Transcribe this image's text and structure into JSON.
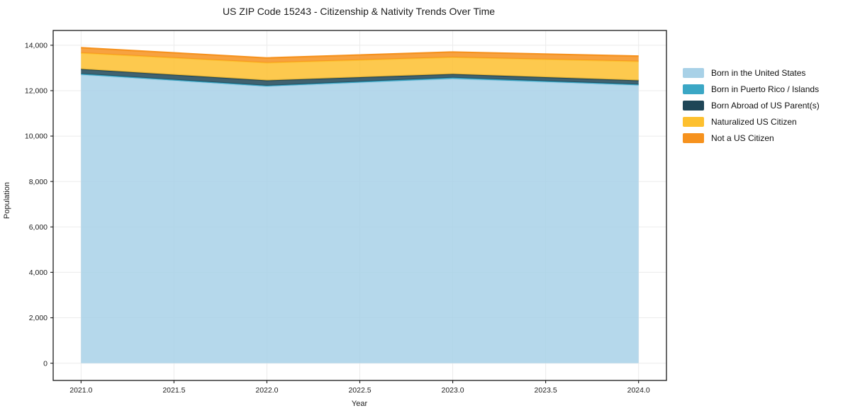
{
  "chart_data": {
    "type": "area",
    "stacked": true,
    "title": "US ZIP Code 15243 - Citizenship & Nativity Trends Over Time",
    "xlabel": "Year",
    "ylabel": "Population",
    "x": [
      2021,
      2022,
      2023,
      2024
    ],
    "series": [
      {
        "name": "Born in the United States",
        "color": "#a8d1e7",
        "values": [
          12700,
          12190,
          12520,
          12240
        ]
      },
      {
        "name": "Born in Puerto Rico / Islands",
        "color": "#3ba7c5",
        "values": [
          40,
          30,
          50,
          30
        ]
      },
      {
        "name": "Born Abroad of US Parent(s)",
        "color": "#1f4657",
        "values": [
          210,
          230,
          160,
          180
        ]
      },
      {
        "name": "Naturalized US Citizen",
        "color": "#fdc02f",
        "values": [
          710,
          780,
          740,
          840
        ]
      },
      {
        "name": "Not a US Citizen",
        "color": "#f6921e",
        "values": [
          230,
          210,
          230,
          230
        ]
      }
    ],
    "totals": [
      13890,
      13440,
      13700,
      13520
    ],
    "x_ticks": [
      {
        "value": 2021.0,
        "label": "2021.0"
      },
      {
        "value": 2021.5,
        "label": "2021.5"
      },
      {
        "value": 2022.0,
        "label": "2022.0"
      },
      {
        "value": 2022.5,
        "label": "2022.5"
      },
      {
        "value": 2023.0,
        "label": "2023.0"
      },
      {
        "value": 2023.5,
        "label": "2023.5"
      },
      {
        "value": 2024.0,
        "label": "2024.0"
      }
    ],
    "y_ticks": [
      {
        "value": 0,
        "label": "0"
      },
      {
        "value": 2000,
        "label": "2,000"
      },
      {
        "value": 4000,
        "label": "4,000"
      },
      {
        "value": 6000,
        "label": "6,000"
      },
      {
        "value": 8000,
        "label": "8,000"
      },
      {
        "value": 10000,
        "label": "10,000"
      },
      {
        "value": 12000,
        "label": "12,000"
      },
      {
        "value": 14000,
        "label": "14,000"
      }
    ],
    "xlim": [
      2020.85,
      2024.15
    ],
    "ylim": [
      -760,
      14650
    ],
    "grid": true,
    "legend_position": "right-outside",
    "fill_opacity": 0.85,
    "style": {
      "grid_color": "#ebebeb",
      "spine_color": "#1a1a1a",
      "tick_color": "#1a1a1a",
      "edge_line_width": 2.2
    }
  }
}
